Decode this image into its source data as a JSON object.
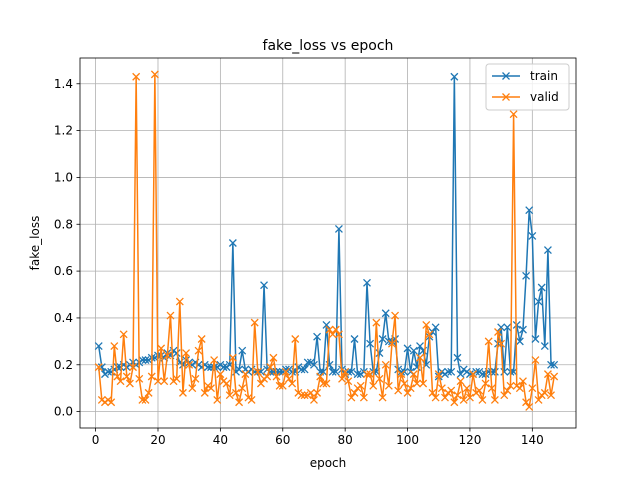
{
  "chart_data": {
    "type": "line",
    "title": "fake_loss vs epoch",
    "xlabel": "epoch",
    "ylabel": "fake_loss",
    "xlim": [
      -5,
      154
    ],
    "ylim": [
      -0.07,
      1.51
    ],
    "xticks": [
      0,
      20,
      40,
      60,
      80,
      100,
      120,
      140
    ],
    "yticks": [
      0.0,
      0.2,
      0.4,
      0.6,
      0.8,
      1.0,
      1.2,
      1.4
    ],
    "ytick_labels": [
      "0.0",
      "0.2",
      "0.4",
      "0.6",
      "0.8",
      "1.0",
      "1.2",
      "1.4"
    ],
    "grid": true,
    "legend_position": "top-right",
    "marker": "x",
    "series": [
      {
        "name": "train",
        "color": "#1f77b4",
        "x": [
          1,
          2,
          3,
          4,
          5,
          6,
          7,
          8,
          9,
          10,
          11,
          12,
          13,
          14,
          15,
          16,
          17,
          18,
          19,
          20,
          21,
          22,
          23,
          24,
          25,
          26,
          27,
          28,
          29,
          30,
          31,
          32,
          33,
          34,
          35,
          36,
          37,
          38,
          39,
          40,
          41,
          42,
          43,
          44,
          45,
          46,
          47,
          48,
          49,
          50,
          51,
          52,
          53,
          54,
          55,
          56,
          57,
          58,
          59,
          60,
          61,
          62,
          63,
          64,
          65,
          66,
          67,
          68,
          69,
          70,
          71,
          72,
          73,
          74,
          75,
          76,
          77,
          78,
          79,
          80,
          81,
          82,
          83,
          84,
          85,
          86,
          87,
          88,
          89,
          90,
          91,
          92,
          93,
          94,
          95,
          96,
          97,
          98,
          99,
          100,
          101,
          102,
          103,
          104,
          105,
          106,
          107,
          108,
          109,
          110,
          111,
          112,
          113,
          114,
          115,
          116,
          117,
          118,
          119,
          120,
          121,
          122,
          123,
          124,
          125,
          126,
          127,
          128,
          129,
          130,
          131,
          132,
          133,
          134,
          135,
          136,
          137,
          138,
          139,
          140,
          141,
          142,
          143,
          144,
          145,
          146,
          147
        ],
        "y": [
          0.28,
          0.19,
          0.16,
          0.17,
          0.17,
          0.18,
          0.19,
          0.19,
          0.2,
          0.19,
          0.2,
          0.21,
          0.2,
          0.21,
          0.22,
          0.22,
          0.22,
          0.23,
          0.23,
          0.24,
          0.24,
          0.23,
          0.25,
          0.24,
          0.26,
          0.25,
          0.21,
          0.2,
          0.22,
          0.21,
          0.2,
          0.21,
          0.2,
          0.19,
          0.2,
          0.19,
          0.19,
          0.19,
          0.19,
          0.2,
          0.19,
          0.19,
          0.2,
          0.72,
          0.17,
          0.18,
          0.26,
          0.18,
          0.17,
          0.18,
          0.17,
          0.17,
          0.17,
          0.54,
          0.18,
          0.17,
          0.17,
          0.17,
          0.17,
          0.17,
          0.18,
          0.18,
          0.17,
          0.17,
          0.19,
          0.18,
          0.18,
          0.21,
          0.21,
          0.2,
          0.32,
          0.17,
          0.17,
          0.37,
          0.2,
          0.17,
          0.17,
          0.78,
          0.18,
          0.16,
          0.17,
          0.17,
          0.31,
          0.16,
          0.16,
          0.17,
          0.55,
          0.29,
          0.17,
          0.17,
          0.25,
          0.31,
          0.42,
          0.3,
          0.3,
          0.31,
          0.18,
          0.17,
          0.17,
          0.27,
          0.17,
          0.26,
          0.19,
          0.28,
          0.26,
          0.2,
          0.32,
          0.34,
          0.36,
          0.15,
          0.17,
          0.16,
          0.17,
          0.17,
          1.43,
          0.23,
          0.16,
          0.18,
          0.17,
          0.16,
          0.16,
          0.17,
          0.17,
          0.16,
          0.16,
          0.17,
          0.17,
          0.17,
          0.29,
          0.36,
          0.17,
          0.36,
          0.17,
          0.17,
          0.37,
          0.3,
          0.35,
          0.58,
          0.86,
          0.75,
          0.31,
          0.47,
          0.53,
          0.28,
          0.69,
          0.2,
          0.2
        ]
      },
      {
        "name": "valid",
        "color": "#ff7f0e",
        "x": [
          1,
          2,
          3,
          4,
          5,
          6,
          7,
          8,
          9,
          10,
          11,
          12,
          13,
          14,
          15,
          16,
          17,
          18,
          19,
          20,
          21,
          22,
          23,
          24,
          25,
          26,
          27,
          28,
          29,
          30,
          31,
          32,
          33,
          34,
          35,
          36,
          37,
          38,
          39,
          40,
          41,
          42,
          43,
          44,
          45,
          46,
          47,
          48,
          49,
          50,
          51,
          52,
          53,
          54,
          55,
          56,
          57,
          58,
          59,
          60,
          61,
          62,
          63,
          64,
          65,
          66,
          67,
          68,
          69,
          70,
          71,
          72,
          73,
          74,
          75,
          76,
          77,
          78,
          79,
          80,
          81,
          82,
          83,
          84,
          85,
          86,
          87,
          88,
          89,
          90,
          91,
          92,
          93,
          94,
          95,
          96,
          97,
          98,
          99,
          100,
          101,
          102,
          103,
          104,
          105,
          106,
          107,
          108,
          109,
          110,
          111,
          112,
          113,
          114,
          115,
          116,
          117,
          118,
          119,
          120,
          121,
          122,
          123,
          124,
          125,
          126,
          127,
          128,
          129,
          130,
          131,
          132,
          133,
          134,
          135,
          136,
          137,
          138,
          139,
          140,
          141,
          142,
          143,
          144,
          145,
          146,
          147
        ],
        "y": [
          0.19,
          0.05,
          0.04,
          0.05,
          0.04,
          0.28,
          0.15,
          0.13,
          0.33,
          0.15,
          0.12,
          0.19,
          1.43,
          0.14,
          0.05,
          0.05,
          0.08,
          0.15,
          1.44,
          0.13,
          0.27,
          0.13,
          0.24,
          0.41,
          0.13,
          0.14,
          0.47,
          0.08,
          0.25,
          0.2,
          0.1,
          0.14,
          0.26,
          0.31,
          0.08,
          0.11,
          0.1,
          0.22,
          0.05,
          0.16,
          0.13,
          0.12,
          0.07,
          0.23,
          0.08,
          0.04,
          0.1,
          0.16,
          0.06,
          0.05,
          0.38,
          0.17,
          0.12,
          0.14,
          0.15,
          0.19,
          0.23,
          0.15,
          0.11,
          0.11,
          0.17,
          0.14,
          0.12,
          0.31,
          0.08,
          0.07,
          0.07,
          0.07,
          0.08,
          0.05,
          0.08,
          0.15,
          0.12,
          0.12,
          0.35,
          0.33,
          0.35,
          0.33,
          0.14,
          0.17,
          0.13,
          0.06,
          0.08,
          0.1,
          0.11,
          0.06,
          0.16,
          0.16,
          0.11,
          0.38,
          0.14,
          0.06,
          0.2,
          0.11,
          0.29,
          0.41,
          0.09,
          0.16,
          0.12,
          0.08,
          0.1,
          0.16,
          0.12,
          0.23,
          0.12,
          0.37,
          0.33,
          0.08,
          0.06,
          0.16,
          0.1,
          0.06,
          0.08,
          0.09,
          0.04,
          0.07,
          0.13,
          0.05,
          0.1,
          0.06,
          0.16,
          0.08,
          0.09,
          0.05,
          0.12,
          0.3,
          0.1,
          0.05,
          0.34,
          0.29,
          0.07,
          0.09,
          0.11,
          1.27,
          0.11,
          0.1,
          0.13,
          0.04,
          0.02,
          0.1,
          0.22,
          0.05,
          0.07,
          0.08,
          0.16,
          0.07,
          0.15
        ]
      }
    ]
  }
}
